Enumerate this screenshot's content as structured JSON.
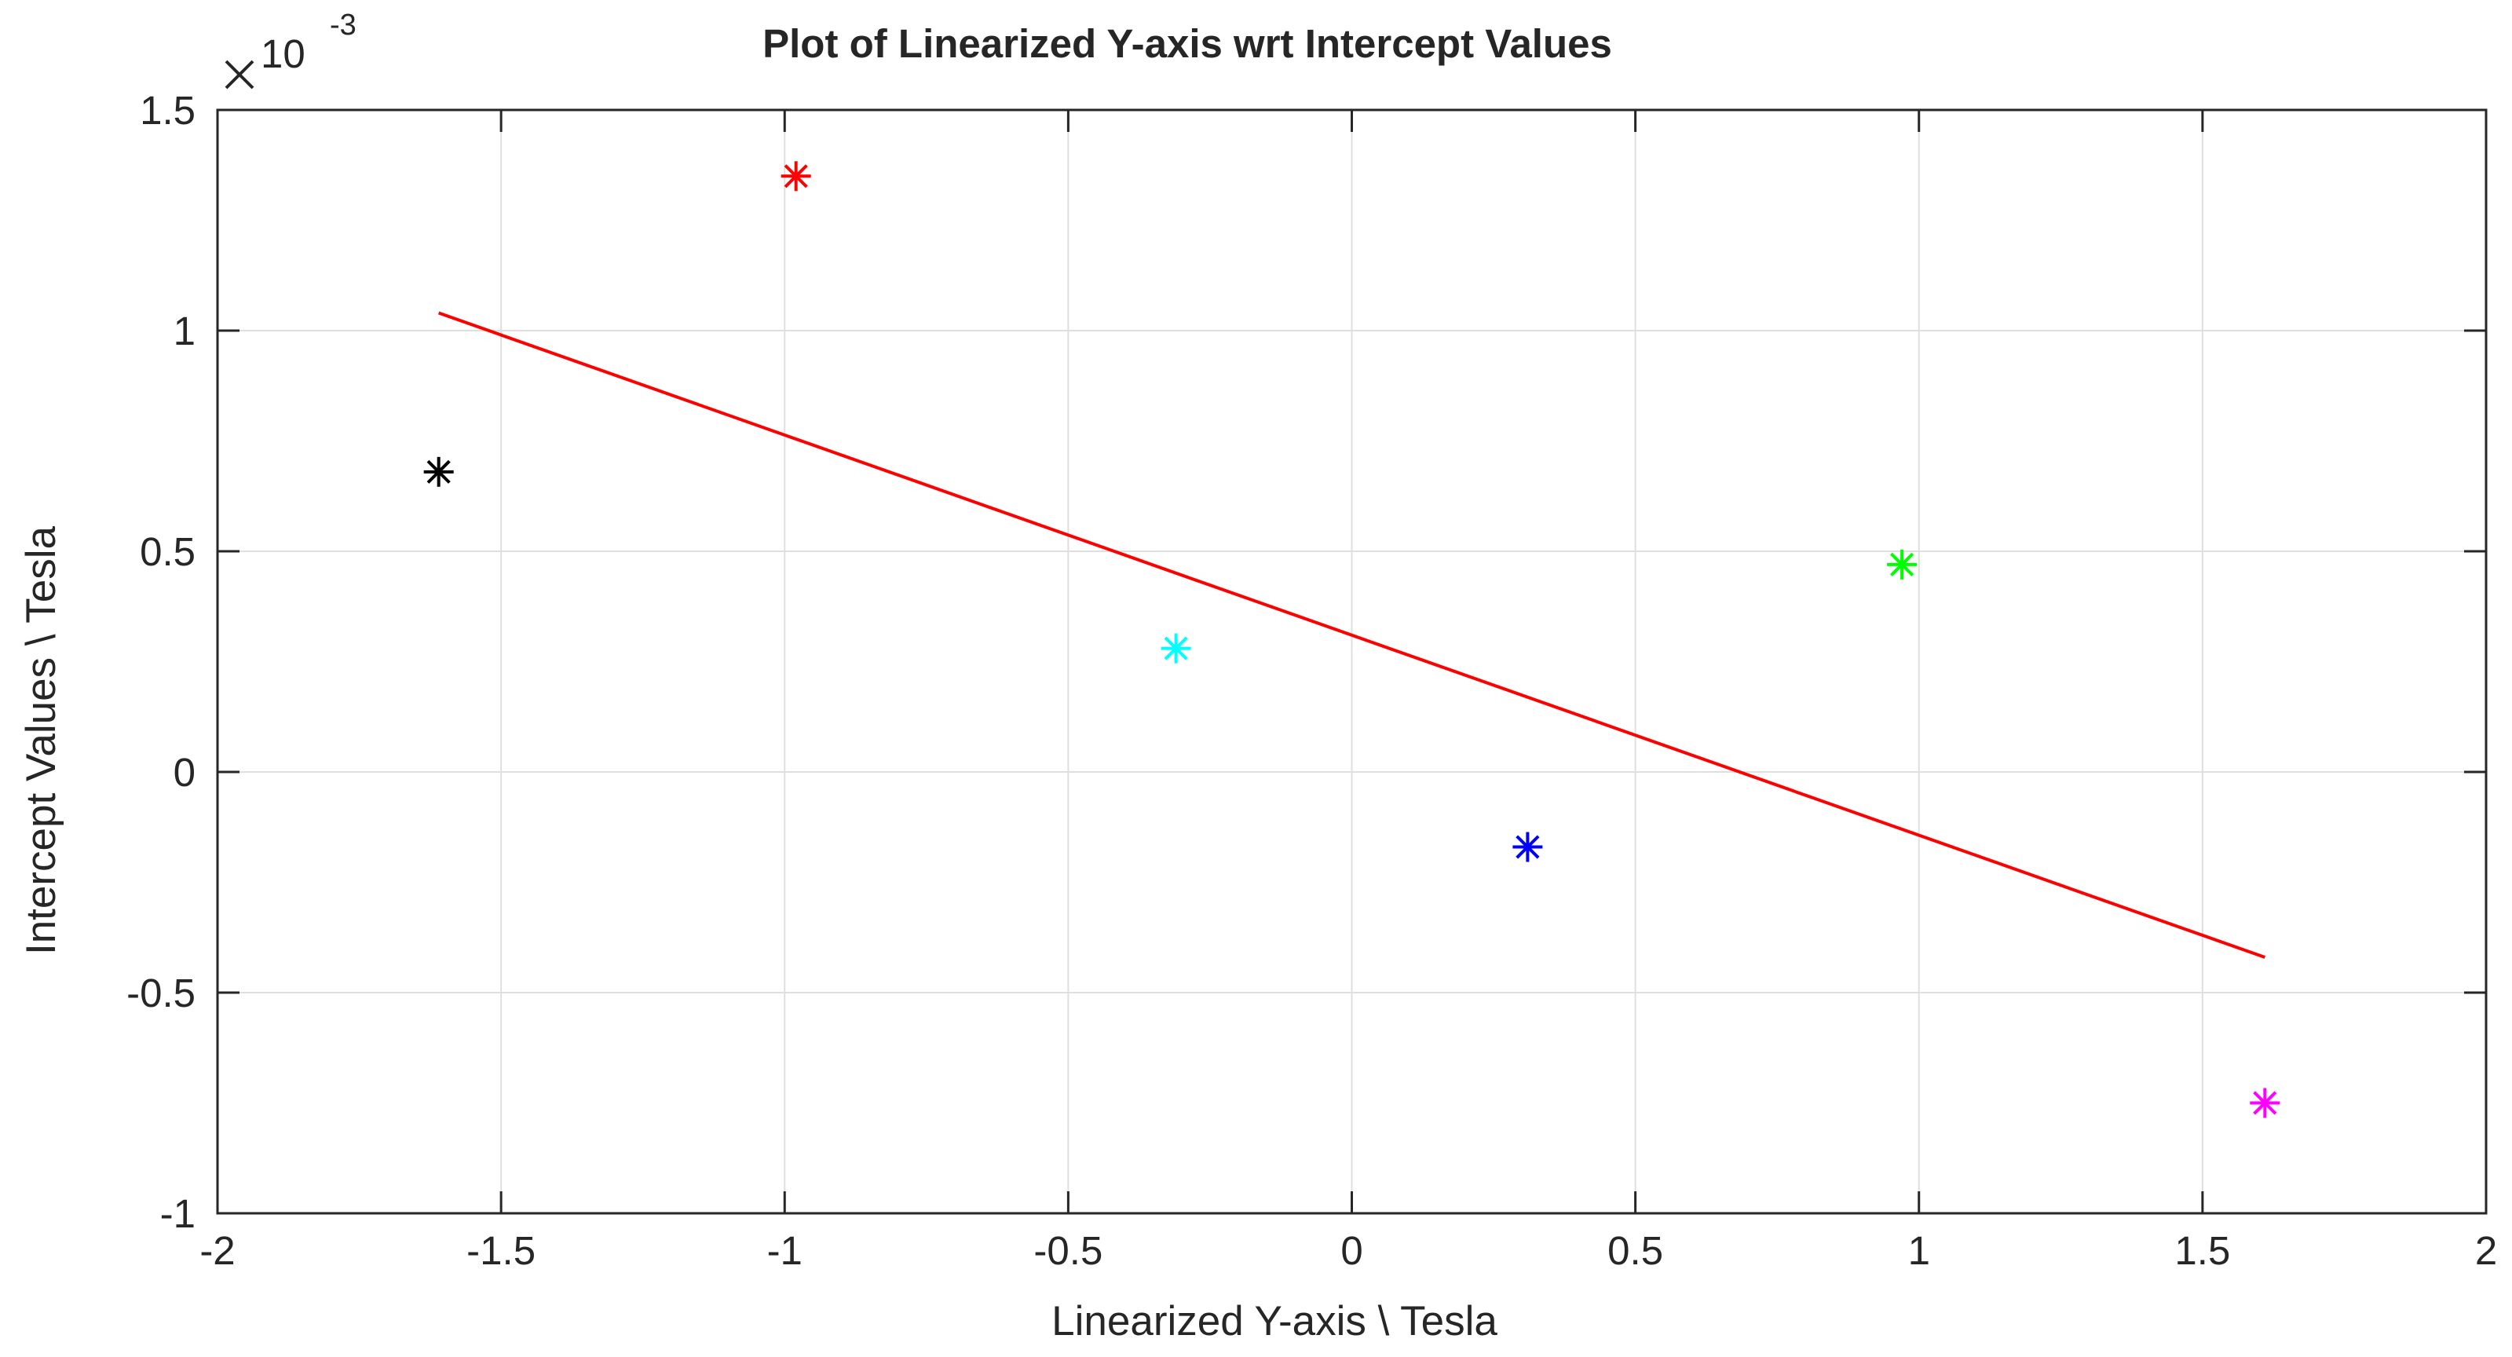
{
  "chart_data": {
    "type": "scatter",
    "title": "Plot of Linearized Y-axis wrt Intercept Values",
    "xlabel": "Linearized Y-axis \\ Tesla",
    "ylabel": "Intercept Values \\ Tesla",
    "xlim": [
      -2,
      2
    ],
    "ylim": [
      -1,
      1.5
    ],
    "y_multiplier": {
      "base": "10",
      "exponent": "-3"
    },
    "grid": true,
    "x_ticks": [
      {
        "value": -2,
        "label": "-2"
      },
      {
        "value": -1.5,
        "label": "-1.5"
      },
      {
        "value": -1,
        "label": "-1"
      },
      {
        "value": -0.5,
        "label": "-0.5"
      },
      {
        "value": 0,
        "label": "0"
      },
      {
        "value": 0.5,
        "label": "0.5"
      },
      {
        "value": 1,
        "label": "1"
      },
      {
        "value": 1.5,
        "label": "1.5"
      },
      {
        "value": 2,
        "label": "2"
      }
    ],
    "y_ticks": [
      {
        "value": -1,
        "label": "-1"
      },
      {
        "value": -0.5,
        "label": "-0.5"
      },
      {
        "value": 0,
        "label": "0"
      },
      {
        "value": 0.5,
        "label": "0.5"
      },
      {
        "value": 1,
        "label": "1"
      },
      {
        "value": 1.5,
        "label": "1.5"
      }
    ],
    "points": [
      {
        "x": -1.61,
        "y": 0.68,
        "color": "#000000"
      },
      {
        "x": -0.98,
        "y": 1.35,
        "color": "#ff0000"
      },
      {
        "x": -0.31,
        "y": 0.28,
        "color": "#00ffff"
      },
      {
        "x": 0.31,
        "y": -0.17,
        "color": "#0000ff"
      },
      {
        "x": 0.97,
        "y": 0.47,
        "color": "#00ff00"
      },
      {
        "x": 1.61,
        "y": -0.75,
        "color": "#ff00ff"
      }
    ],
    "fit_line": {
      "x": [
        -1.61,
        1.61
      ],
      "y": [
        1.04,
        -0.42
      ],
      "color": "#ff0000"
    }
  }
}
